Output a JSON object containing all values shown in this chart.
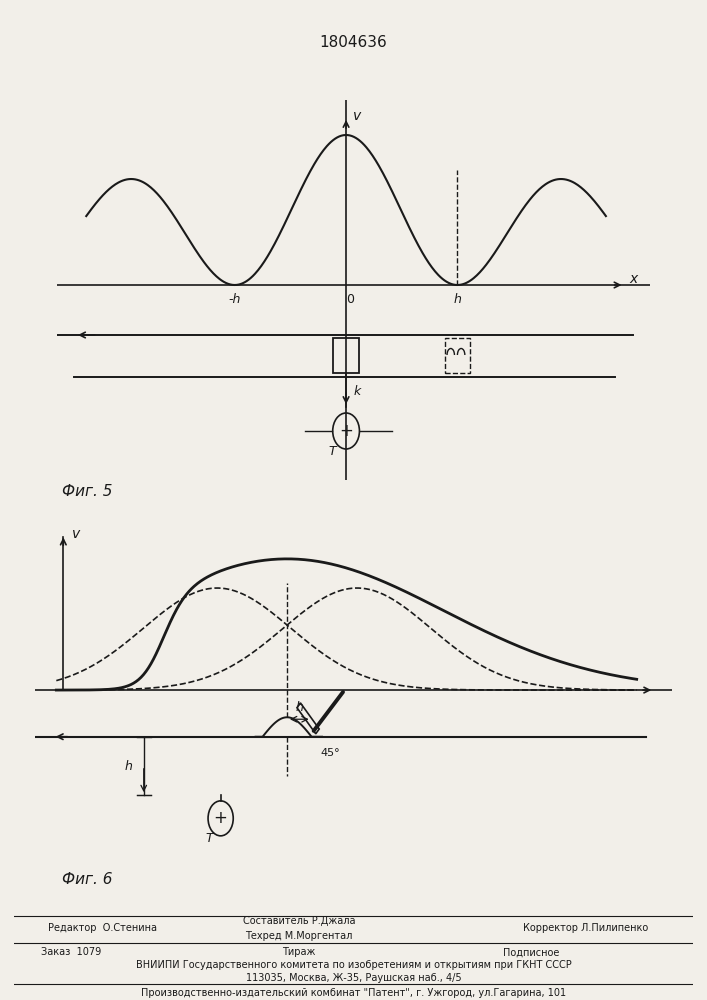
{
  "title": "1804636",
  "fig5_caption": "Фиг. 5",
  "fig6_caption": "Фиг. 6",
  "bg_color": "#f2efe9",
  "line_color": "#1a1a1a"
}
